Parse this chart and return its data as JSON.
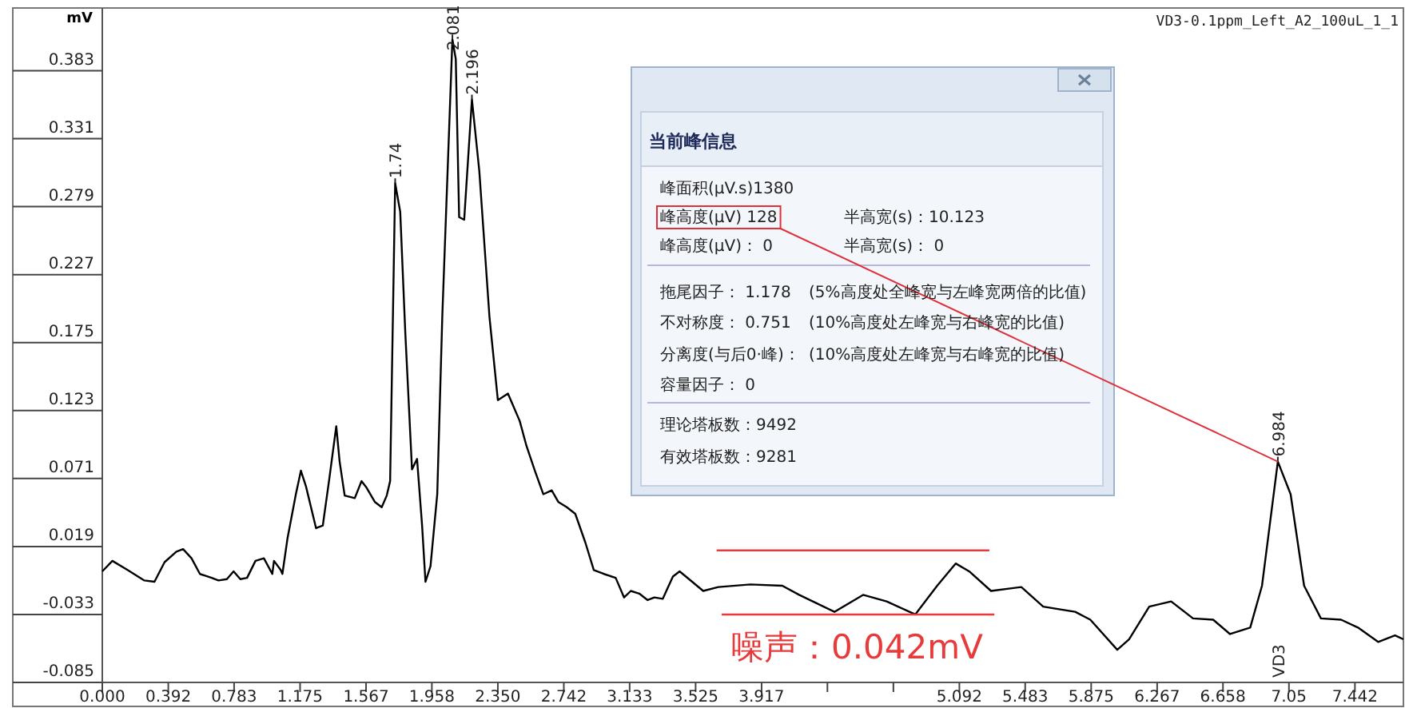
{
  "chart_data": {
    "type": "line",
    "title": "VD3-0.1ppm_Left_A2_100uL_1_1",
    "ylabel": "mV",
    "xlim": [
      0,
      7.73
    ],
    "ylim": [
      -0.085,
      0.431
    ],
    "xticks": [
      {
        "value": 0,
        "label": "0.000"
      },
      0.392,
      0.783,
      1.175,
      1.567,
      1.958,
      {
        "value": 2.35,
        "label": "2.350"
      },
      2.742,
      3.133,
      3.525,
      3.917,
      {
        "value": 4.308,
        "label": null
      },
      {
        "value": 4.7,
        "label": null
      },
      5.092,
      5.483,
      5.875,
      6.267,
      6.658,
      7.05,
      7.442
    ],
    "yticks": [
      -0.085,
      -0.033,
      0.019,
      0.071,
      0.123,
      0.175,
      0.227,
      0.279,
      0.331,
      0.383
    ],
    "grid": false,
    "marker": "none",
    "series": [
      {
        "color": "#000000",
        "type": "line",
        "x": [
          0.0,
          0.06,
          0.15,
          0.25,
          0.31,
          0.37,
          0.44,
          0.48,
          0.53,
          0.58,
          0.65,
          0.69,
          0.74,
          0.78,
          0.82,
          0.86,
          0.91,
          0.96,
          1.01,
          1.02,
          1.06,
          1.07,
          1.1,
          1.15,
          1.18,
          1.21,
          1.27,
          1.31,
          1.35,
          1.39,
          1.41,
          1.44,
          1.5,
          1.54,
          1.57,
          1.62,
          1.66,
          1.69,
          1.71,
          1.74,
          1.77,
          1.8,
          1.84,
          1.87,
          1.9,
          1.92,
          1.95,
          1.99,
          2.02,
          2.08,
          2.1,
          2.12,
          2.15,
          2.196,
          2.24,
          2.3,
          2.35,
          2.41,
          2.48,
          2.52,
          2.57,
          2.62,
          2.67,
          2.71,
          2.76,
          2.81,
          2.87,
          2.92,
          2.98,
          3.05,
          3.1,
          3.14,
          3.19,
          3.24,
          3.28,
          3.33,
          3.39,
          3.43,
          3.57,
          3.66,
          3.85,
          4.04,
          4.14,
          4.35,
          4.52,
          4.66,
          4.83,
          4.96,
          5.07,
          5.15,
          5.28,
          5.46,
          5.59,
          5.78,
          5.87,
          6.03,
          6.1,
          6.22,
          6.35,
          6.48,
          6.6,
          6.7,
          6.82,
          6.89,
          6.984,
          7.06,
          7.14,
          7.24,
          7.36,
          7.46,
          7.58,
          7.68,
          7.73
        ],
        "values": [
          0.0,
          0.008,
          0.001,
          -0.007,
          -0.008,
          0.007,
          0.015,
          0.017,
          0.01,
          -0.002,
          -0.005,
          -0.007,
          -0.006,
          0.0,
          -0.006,
          -0.005,
          0.008,
          0.01,
          -0.002,
          0.008,
          0.001,
          -0.002,
          0.025,
          0.059,
          0.077,
          0.065,
          0.033,
          0.035,
          0.072,
          0.111,
          0.084,
          0.058,
          0.056,
          0.069,
          0.064,
          0.053,
          0.049,
          0.058,
          0.069,
          0.297,
          0.275,
          0.183,
          0.078,
          0.086,
          0.035,
          -0.008,
          0.004,
          0.059,
          0.195,
          0.407,
          0.392,
          0.271,
          0.269,
          0.361,
          0.306,
          0.195,
          0.131,
          0.136,
          0.115,
          0.096,
          0.077,
          0.059,
          0.062,
          0.053,
          0.049,
          0.044,
          0.022,
          0.001,
          -0.002,
          -0.005,
          -0.02,
          -0.015,
          -0.017,
          -0.022,
          -0.02,
          -0.021,
          -0.004,
          0.0,
          -0.015,
          -0.012,
          -0.01,
          -0.011,
          -0.018,
          -0.031,
          -0.018,
          -0.023,
          -0.033,
          -0.011,
          0.006,
          0.0,
          -0.015,
          -0.012,
          -0.027,
          -0.031,
          -0.037,
          -0.06,
          -0.052,
          -0.027,
          -0.023,
          -0.036,
          -0.037,
          -0.048,
          -0.043,
          -0.011,
          0.084,
          0.059,
          -0.011,
          -0.036,
          -0.037,
          -0.043,
          -0.054,
          -0.049,
          -0.052
        ]
      },
      {
        "color": "#e83a3a",
        "type": "line",
        "x": [
          3.65,
          5.27
        ],
        "values": [
          0.016,
          0.016
        ]
      },
      {
        "color": "#e83a3a",
        "type": "line",
        "x": [
          3.68,
          5.3
        ],
        "values": [
          -0.033,
          -0.033
        ]
      }
    ],
    "annotations": [
      {
        "text": "1.74",
        "x": 1.74,
        "y": 0.297
      },
      {
        "text": "2.081",
        "x": 2.08,
        "y": 0.407
      },
      {
        "text": "2.196",
        "x": 2.196,
        "y": 0.361
      },
      {
        "text": "6.984",
        "x": 6.984,
        "y": 0.084
      },
      "VD3",
      "噪声：0.042mV",
      "当前峰信息",
      "峰面积(μV.s)1380",
      {
        "text": "峰高度(μV) 128",
        "x": 6.984,
        "y": 0.084
      },
      "半高宽(s)：10.123",
      "峰高度(μV)： 0",
      "半高宽(s)：  0",
      "拖尾因子： 1.178",
      "(5%高度处全峰宽与左峰宽两倍的比值)",
      "不对称度： 0.751",
      "(10%高度处左峰宽与右峰宽的比值)",
      "分离度(与后0·峰)：",
      "(10%高度处左峰宽与右峰宽的比值)",
      "容量因子： 0",
      "理论塔板数：9492",
      "有效塔板数：9281"
    ]
  }
}
